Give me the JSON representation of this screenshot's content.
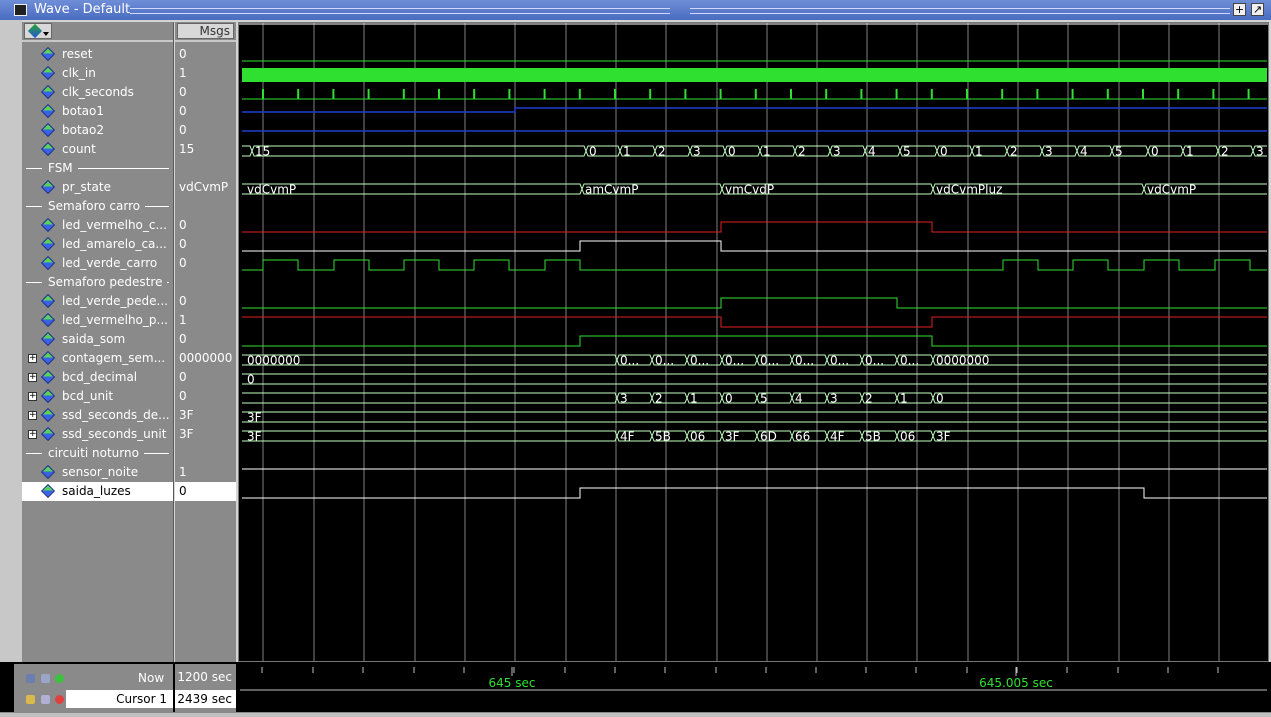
{
  "window": {
    "title": "Wave - Default",
    "buttons": [
      "+",
      "↗"
    ]
  },
  "header": {
    "values_label": "Msgs"
  },
  "rows": [
    {
      "kind": "signal",
      "name": "reset",
      "value": "0",
      "expand": false
    },
    {
      "kind": "signal",
      "name": "clk_in",
      "value": "1",
      "expand": false
    },
    {
      "kind": "signal",
      "name": "clk_seconds",
      "value": "0",
      "expand": false
    },
    {
      "kind": "signal",
      "name": "botao1",
      "value": "0",
      "expand": false
    },
    {
      "kind": "signal",
      "name": "botao2",
      "value": "0",
      "expand": false
    },
    {
      "kind": "signal",
      "name": "count",
      "value": "15",
      "expand": false
    },
    {
      "kind": "group",
      "name": "FSM"
    },
    {
      "kind": "signal",
      "name": "pr_state",
      "value": "vdCvmP",
      "expand": false
    },
    {
      "kind": "group",
      "name": "Semaforo carro"
    },
    {
      "kind": "signal",
      "name": "led_vermelho_c...",
      "value": "0",
      "expand": false
    },
    {
      "kind": "signal",
      "name": "led_amarelo_ca...",
      "value": "0",
      "expand": false
    },
    {
      "kind": "signal",
      "name": "led_verde_carro",
      "value": "0",
      "expand": false
    },
    {
      "kind": "group",
      "name": "Semaforo pedestre"
    },
    {
      "kind": "signal",
      "name": "led_verde_pede...",
      "value": "0",
      "expand": false
    },
    {
      "kind": "signal",
      "name": "led_vermelho_p...",
      "value": "1",
      "expand": false
    },
    {
      "kind": "signal",
      "name": "saida_som",
      "value": "0",
      "expand": false
    },
    {
      "kind": "signal",
      "name": "contagem_sem...",
      "value": "0000000",
      "expand": true
    },
    {
      "kind": "signal",
      "name": "bcd_decimal",
      "value": "0",
      "expand": true
    },
    {
      "kind": "signal",
      "name": "bcd_unit",
      "value": "0",
      "expand": true
    },
    {
      "kind": "signal",
      "name": "ssd_seconds_de...",
      "value": "3F",
      "expand": true
    },
    {
      "kind": "signal",
      "name": "ssd_seconds_unit",
      "value": "3F",
      "expand": true
    },
    {
      "kind": "group",
      "name": "circuiti noturno"
    },
    {
      "kind": "signal",
      "name": "sensor_noite",
      "value": "1",
      "expand": false
    },
    {
      "kind": "signal",
      "name": "saida_luzes",
      "value": "0",
      "expand": false,
      "selected": true
    }
  ],
  "waves": {
    "count_labels": [
      {
        "t": 254,
        "s": "15"
      },
      {
        "t": 588,
        "s": "0"
      },
      {
        "t": 622,
        "s": "1"
      },
      {
        "t": 657,
        "s": "2"
      },
      {
        "t": 692,
        "s": "3"
      },
      {
        "t": 727,
        "s": "0"
      },
      {
        "t": 762,
        "s": "1"
      },
      {
        "t": 797,
        "s": "2"
      },
      {
        "t": 832,
        "s": "3"
      },
      {
        "t": 867,
        "s": "4"
      },
      {
        "t": 902,
        "s": "5"
      },
      {
        "t": 939,
        "s": "0"
      },
      {
        "t": 974,
        "s": "1"
      },
      {
        "t": 1009,
        "s": "2"
      },
      {
        "t": 1044,
        "s": "3"
      },
      {
        "t": 1079,
        "s": "4"
      },
      {
        "t": 1114,
        "s": "5"
      },
      {
        "t": 1150,
        "s": "0"
      },
      {
        "t": 1185,
        "s": "1"
      },
      {
        "t": 1220,
        "s": "2"
      },
      {
        "t": 1255,
        "s": "3"
      }
    ],
    "state_labels": [
      {
        "t": 246,
        "s": "vdCvmP"
      },
      {
        "t": 584,
        "s": "amCvmP"
      },
      {
        "t": 724,
        "s": "vmCvdP"
      },
      {
        "t": 935,
        "s": "vdCvmPluz"
      },
      {
        "t": 1146,
        "s": "vdCvmP"
      }
    ],
    "contagem_labels": [
      {
        "t": 246,
        "s": "0000000"
      },
      {
        "t": 619,
        "s": "0..."
      },
      {
        "t": 654,
        "s": "0..."
      },
      {
        "t": 689,
        "s": "0..."
      },
      {
        "t": 724,
        "s": "0..."
      },
      {
        "t": 759,
        "s": "0..."
      },
      {
        "t": 794,
        "s": "0..."
      },
      {
        "t": 829,
        "s": "0..."
      },
      {
        "t": 864,
        "s": "0..."
      },
      {
        "t": 899,
        "s": "0..."
      },
      {
        "t": 935,
        "s": "0000000"
      }
    ],
    "bcd_decimal_labels": [
      {
        "t": 246,
        "s": "0"
      }
    ],
    "bcd_unit_labels": [
      {
        "t": 619,
        "s": "3"
      },
      {
        "t": 654,
        "s": "2"
      },
      {
        "t": 689,
        "s": "1"
      },
      {
        "t": 724,
        "s": "0"
      },
      {
        "t": 759,
        "s": "5"
      },
      {
        "t": 794,
        "s": "4"
      },
      {
        "t": 829,
        "s": "3"
      },
      {
        "t": 864,
        "s": "2"
      },
      {
        "t": 899,
        "s": "1"
      },
      {
        "t": 935,
        "s": "0"
      }
    ],
    "ssd_de_labels": [
      {
        "t": 246,
        "s": "3F"
      }
    ],
    "ssd_unit_labels": [
      {
        "t": 246,
        "s": "3F"
      },
      {
        "t": 619,
        "s": "4F"
      },
      {
        "t": 654,
        "s": "5B"
      },
      {
        "t": 689,
        "s": "06"
      },
      {
        "t": 724,
        "s": "3F"
      },
      {
        "t": 759,
        "s": "6D"
      },
      {
        "t": 794,
        "s": "66"
      },
      {
        "t": 829,
        "s": "4F"
      },
      {
        "t": 864,
        "s": "5B"
      },
      {
        "t": 899,
        "s": "06"
      },
      {
        "t": 935,
        "s": "3F"
      }
    ]
  },
  "status": {
    "now_label": "Now",
    "now_value": "1200 sec",
    "cursor_label": "Cursor 1",
    "cursor_value": "2439 sec",
    "time_labels": [
      {
        "t": 512,
        "s": "645 sec"
      },
      {
        "t": 1016,
        "s": "645.005 sec"
      }
    ]
  },
  "colors": {
    "grid": "#808080",
    "green": "#30e030",
    "blue": "#2040d0",
    "red": "#e02020",
    "bus": "#c0ffc0",
    "white": "#ffffff",
    "timelabel": "#30e030"
  }
}
